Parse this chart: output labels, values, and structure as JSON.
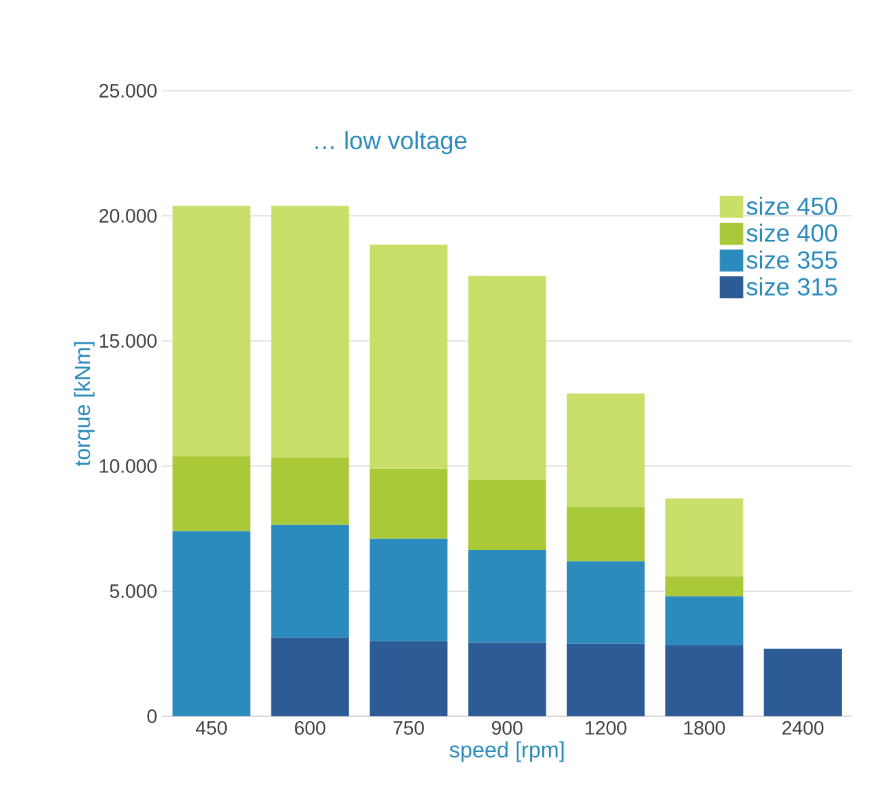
{
  "chart_data": {
    "type": "bar",
    "title": "… low voltage",
    "xlabel": "speed [rpm]",
    "ylabel": "torque [kNm]",
    "categories": [
      "450",
      "600",
      "750",
      "900",
      "1200",
      "1800",
      "2400"
    ],
    "stacked": true,
    "series": [
      {
        "name": "size 315",
        "color": "#2c5b96",
        "values": [
          null,
          3150,
          3000,
          2950,
          2900,
          2850,
          2700
        ]
      },
      {
        "name": "size 355",
        "color": "#2b8bbd",
        "values": [
          7400,
          4500,
          4100,
          3700,
          3300,
          1950,
          null
        ]
      },
      {
        "name": "size 400",
        "color": "#a9c938",
        "values": [
          3000,
          2700,
          2800,
          2800,
          2150,
          800,
          null
        ]
      },
      {
        "name": "size 450",
        "color": "#c8e06a",
        "values": [
          10000,
          10050,
          8950,
          8150,
          4550,
          3100,
          null
        ]
      }
    ],
    "ylim": [
      0,
      25000
    ],
    "yticks": [
      {
        "value": 0,
        "label": "0"
      },
      {
        "value": 5000,
        "label": "5.000"
      },
      {
        "value": 10000,
        "label": "10.000"
      },
      {
        "value": 15000,
        "label": "15.000"
      },
      {
        "value": 20000,
        "label": "20.000"
      },
      {
        "value": 25000,
        "label": "25.000"
      }
    ],
    "grid": "y",
    "legend": "right"
  }
}
